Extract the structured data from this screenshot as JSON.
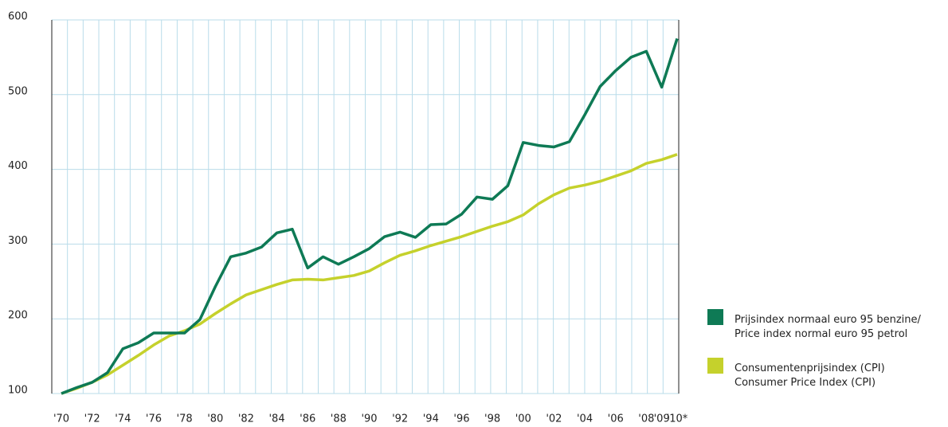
{
  "chart_data": {
    "type": "line",
    "categories": [
      "'70",
      null,
      "'72",
      null,
      "'74",
      null,
      "'76",
      null,
      "'78",
      null,
      "'80",
      null,
      "'82",
      null,
      "'84",
      null,
      "'86",
      null,
      "'88",
      null,
      "'90",
      null,
      "'92",
      null,
      "'94",
      null,
      "'96",
      null,
      "'98",
      null,
      "'00",
      null,
      "'02",
      null,
      "'04",
      null,
      "'06",
      null,
      "'08",
      "'09",
      "'10*"
    ],
    "series": [
      {
        "name": "Prijsindex normaal euro 95 benzine/\nPrice index normal euro 95 petrol",
        "color": "#0e7a55",
        "values": [
          100,
          108,
          115,
          128,
          160,
          168,
          181,
          181,
          181,
          199,
          243,
          283,
          288,
          296,
          315,
          320,
          268,
          283,
          273,
          283,
          294,
          310,
          316,
          309,
          326,
          327,
          340,
          363,
          360,
          378,
          436,
          432,
          430,
          437,
          473,
          511,
          532,
          550,
          558,
          510,
          575
        ]
      },
      {
        "name": "Consumentenprijsindex (CPI)\nConsumer Price Index (CPI)",
        "color": "#c5d12c",
        "values": [
          100,
          107,
          115,
          125,
          138,
          151,
          165,
          177,
          184,
          193,
          207,
          220,
          232,
          239,
          246,
          252,
          253,
          252,
          255,
          258,
          264,
          275,
          285,
          291,
          298,
          304,
          310,
          317,
          324,
          330,
          339,
          354,
          366,
          375,
          379,
          384,
          391,
          398,
          408,
          413,
          420
        ]
      }
    ],
    "ylim": [
      100,
      600
    ],
    "yticks": [
      100,
      200,
      300,
      400,
      500,
      600
    ],
    "grid": true
  }
}
